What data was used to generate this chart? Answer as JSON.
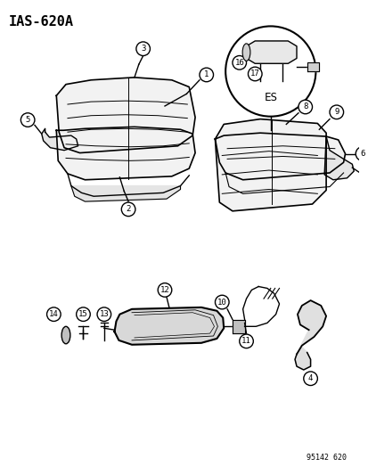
{
  "title": "IAS-620A",
  "part_number": "95142 620",
  "bg_color": "#ffffff",
  "line_color": "#000000",
  "es_label": "ES",
  "figsize": [
    4.14,
    5.33
  ],
  "dpi": 100
}
